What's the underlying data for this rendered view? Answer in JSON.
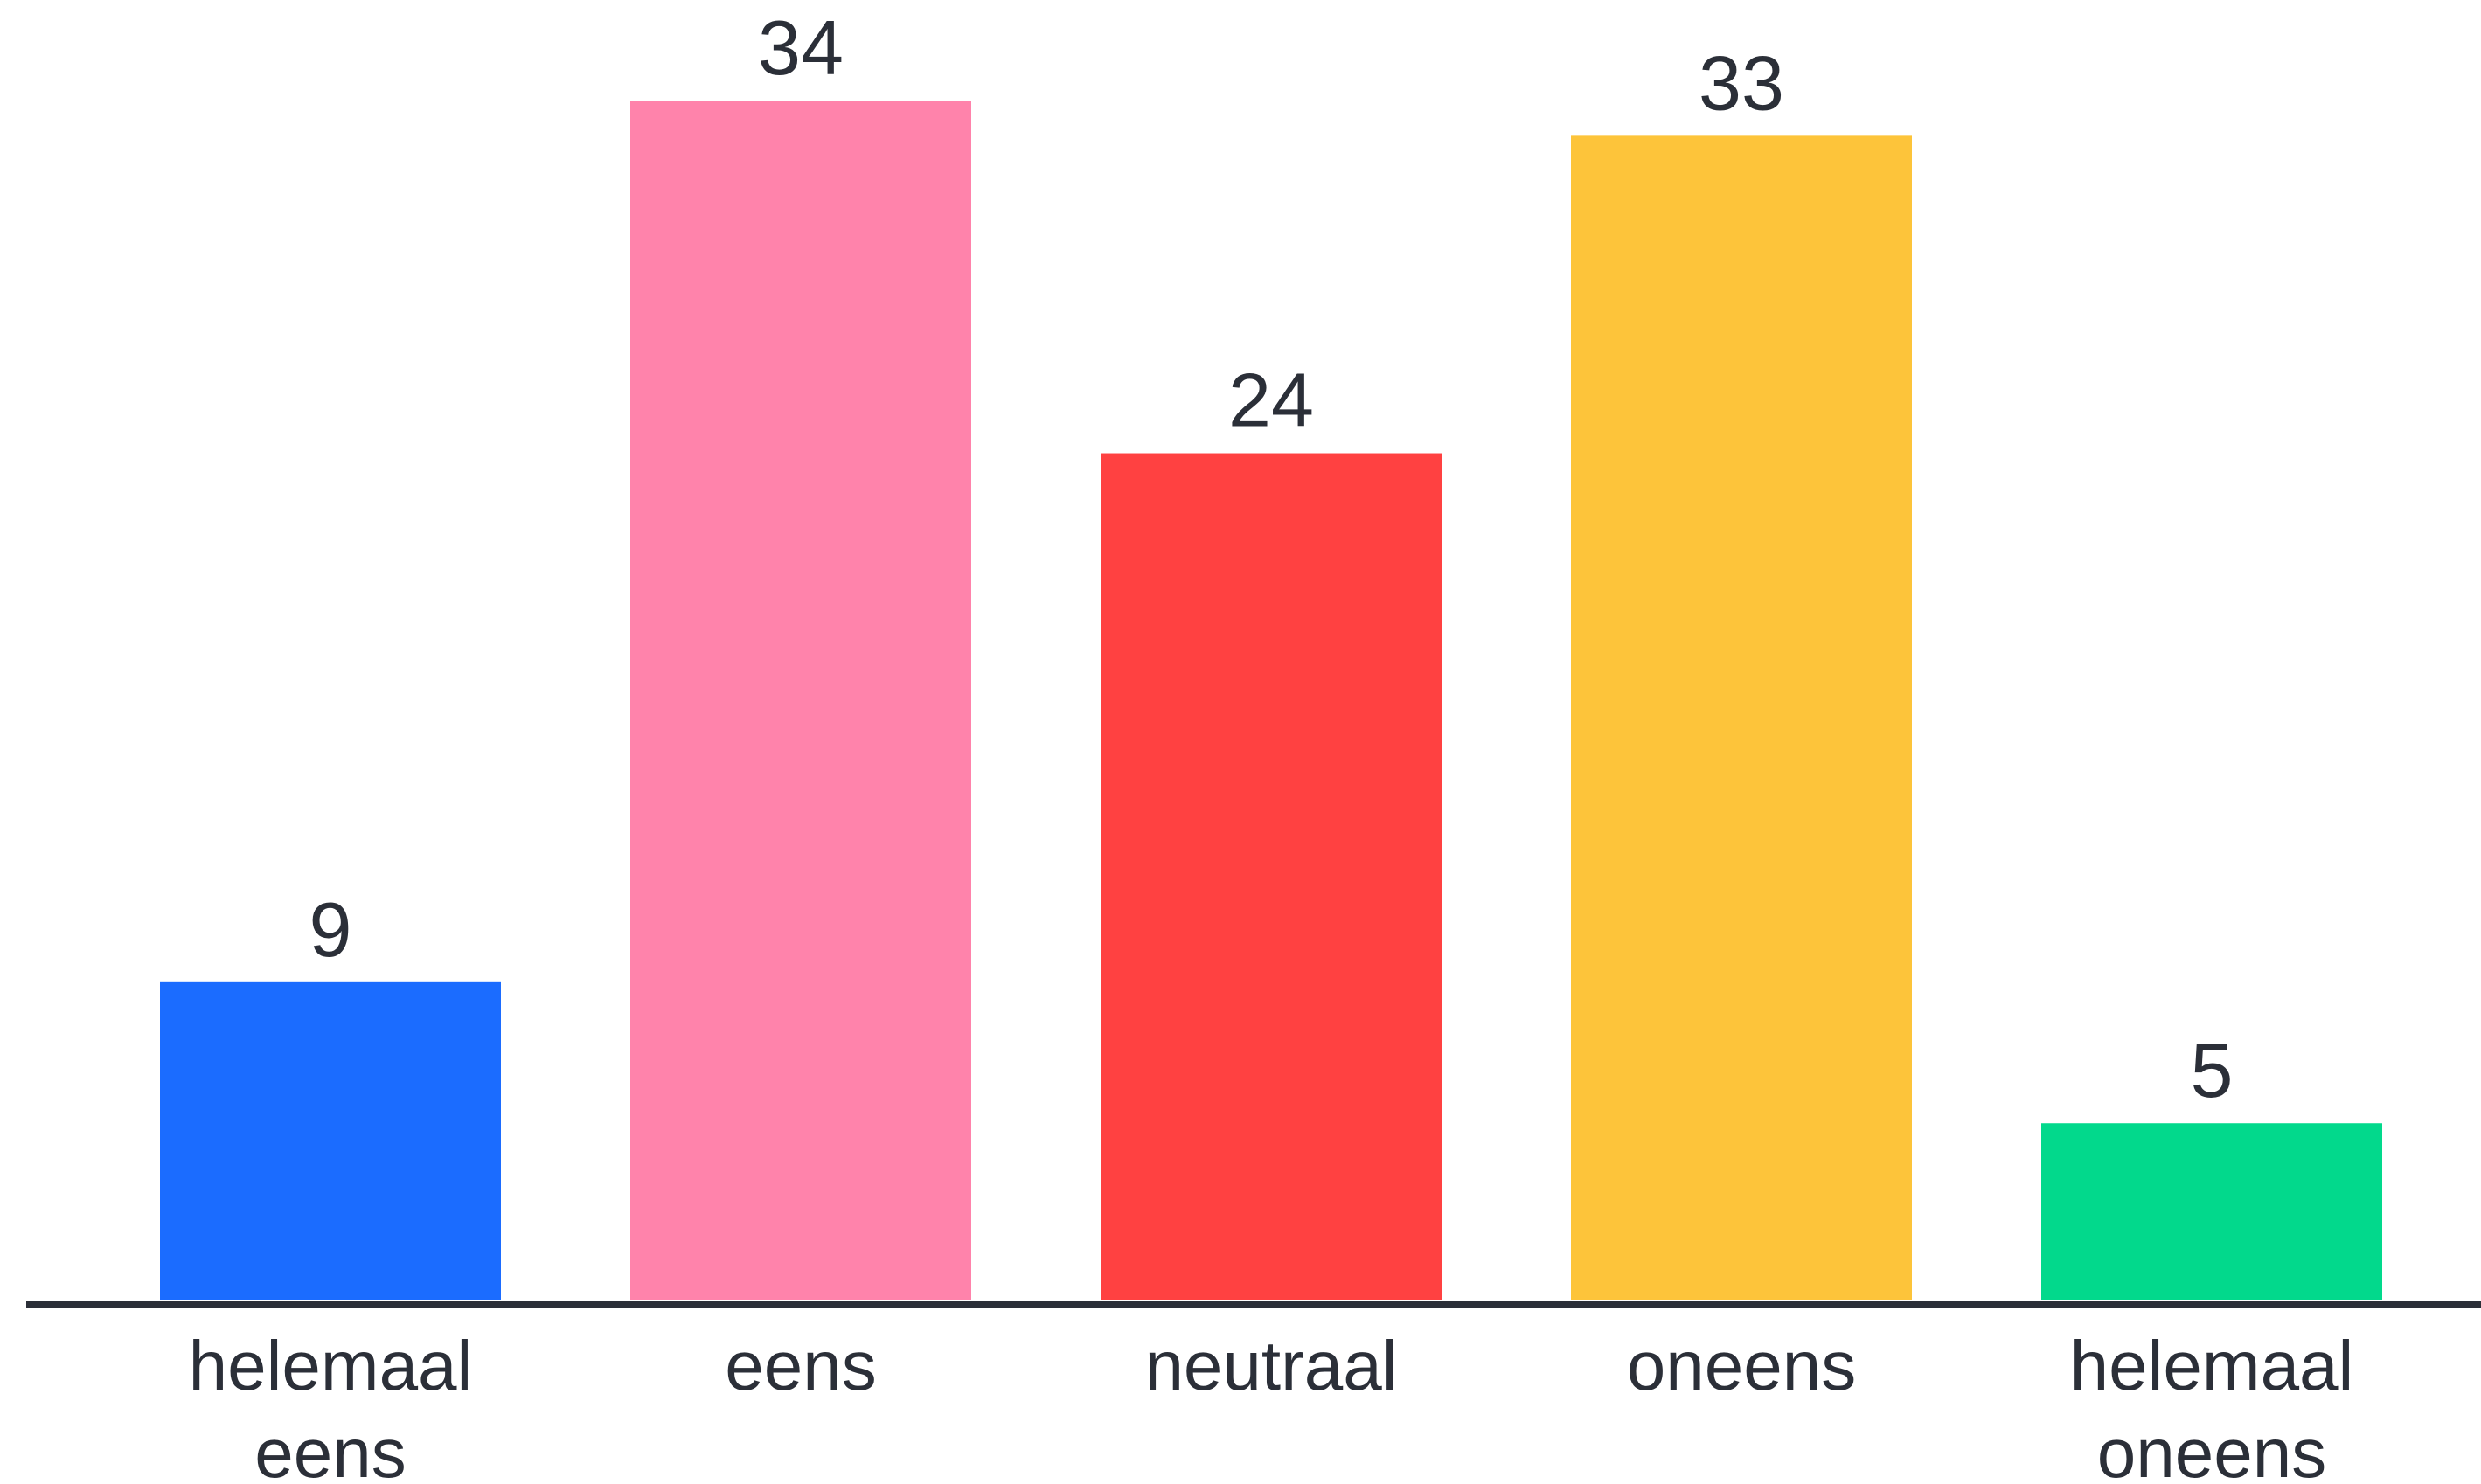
{
  "chart_data": {
    "type": "bar",
    "title": "",
    "xlabel": "",
    "ylabel": "",
    "categories": [
      [
        "helemaal",
        "eens"
      ],
      [
        "eens"
      ],
      [
        "neutraal"
      ],
      [
        "oneens"
      ],
      [
        "helemaal",
        "oneens"
      ]
    ],
    "values": [
      9,
      34,
      24,
      33,
      5
    ],
    "value_labels": [
      "9",
      "34",
      "24",
      "33",
      "5"
    ],
    "colors": [
      "#1b6cff",
      "#ff83ab",
      "#ff4141",
      "#fdc43a",
      "#02d98c"
    ],
    "axis_color": "#2b2f38",
    "grid": false,
    "legend": "none",
    "ylim": [
      0,
      34
    ]
  }
}
